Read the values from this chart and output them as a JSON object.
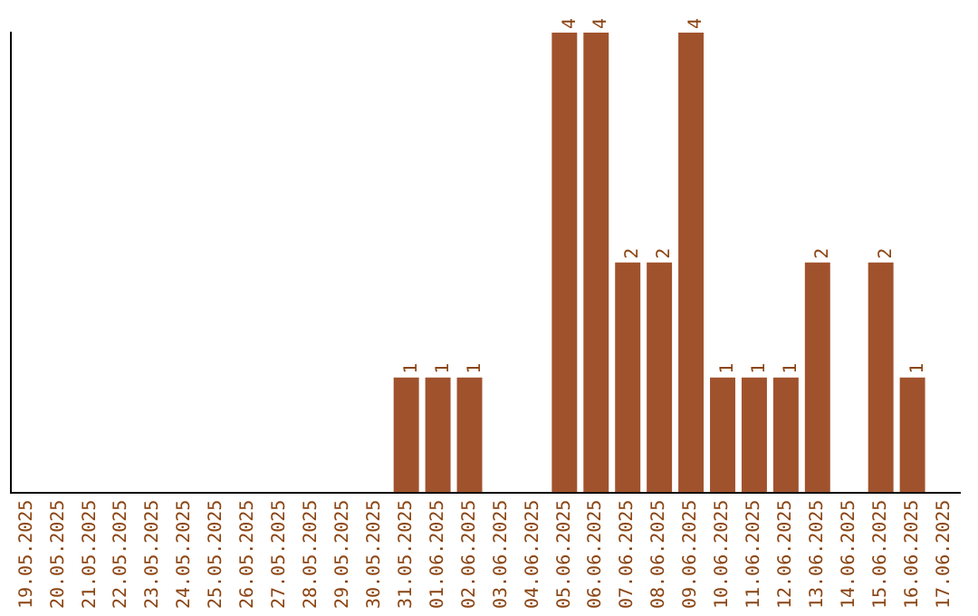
{
  "chart_data": {
    "type": "bar",
    "categories": [
      "19.05.2025",
      "20.05.2025",
      "21.05.2025",
      "22.05.2025",
      "23.05.2025",
      "24.05.2025",
      "25.05.2025",
      "26.05.2025",
      "27.05.2025",
      "28.05.2025",
      "29.05.2025",
      "30.05.2025",
      "31.05.2025",
      "01.06.2025",
      "02.06.2025",
      "03.06.2025",
      "04.06.2025",
      "05.06.2025",
      "06.06.2025",
      "07.06.2025",
      "08.06.2025",
      "09.06.2025",
      "10.06.2025",
      "11.06.2025",
      "12.06.2025",
      "13.06.2025",
      "14.06.2025",
      "15.06.2025",
      "16.06.2025",
      "17.06.2025"
    ],
    "values": [
      null,
      null,
      null,
      null,
      null,
      null,
      null,
      null,
      null,
      null,
      null,
      null,
      1,
      1,
      1,
      null,
      null,
      4,
      4,
      2,
      2,
      4,
      1,
      1,
      1,
      2,
      null,
      2,
      1,
      null
    ],
    "data_labels": true,
    "color": "#a0522d",
    "grid": false,
    "legend": false,
    "tick_labels": "x"
  }
}
